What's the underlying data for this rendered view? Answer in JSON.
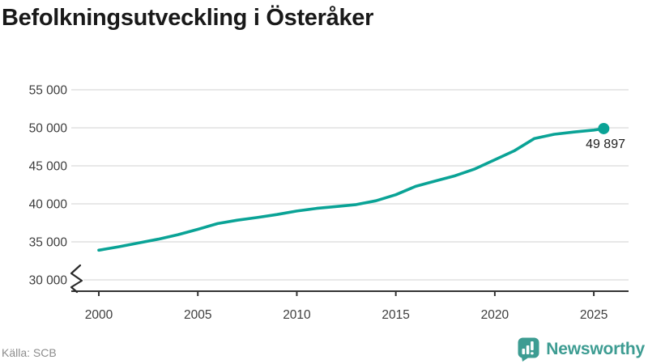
{
  "header": {
    "title": "Befolkningsutveckling i Österåker"
  },
  "footer": {
    "source": "Källa: SCB",
    "brand": "Newsworthy"
  },
  "colors": {
    "line": "#0aa396",
    "brand": "#3d9c92",
    "grid": "#e1e1e1",
    "axis": "#333333",
    "tick_text": "#3d3d3d",
    "title_text": "#191919",
    "source_text": "#8c8c8c",
    "end_label_text": "#1f1f1f",
    "background": "#ffffff"
  },
  "chart_data": {
    "type": "line",
    "title": "Befolkningsutveckling i Österåker",
    "x": [
      2000,
      2001,
      2002,
      2003,
      2004,
      2005,
      2006,
      2007,
      2008,
      2009,
      2010,
      2011,
      2012,
      2013,
      2014,
      2015,
      2016,
      2017,
      2018,
      2019,
      2020,
      2021,
      2022,
      2023,
      2024,
      2025,
      2025.5
    ],
    "y": [
      33900,
      34350,
      34850,
      35350,
      35950,
      36650,
      37400,
      37850,
      38200,
      38600,
      39050,
      39400,
      39650,
      39900,
      40400,
      41200,
      42300,
      43000,
      43700,
      44600,
      45800,
      47000,
      48600,
      49150,
      49450,
      49700,
      49897
    ],
    "end_value": 49897,
    "end_label": "49 897",
    "x_ticks": [
      2000,
      2005,
      2010,
      2015,
      2020,
      2025
    ],
    "y_ticks": [
      {
        "value": 55000,
        "label": "55 000"
      },
      {
        "value": 50000,
        "label": "50 000"
      },
      {
        "value": 45000,
        "label": "45 000"
      },
      {
        "value": 40000,
        "label": "40 000"
      },
      {
        "value": 35000,
        "label": "35 000"
      },
      {
        "value": 30000,
        "label": "30 000"
      }
    ],
    "ylim": [
      30000,
      55000
    ],
    "xlim": [
      2000,
      2025.5
    ],
    "axis_break_below": 30000,
    "grid": "horizontal",
    "legend": "none",
    "line_color": "#0aa396",
    "xlabel": "",
    "ylabel": ""
  }
}
